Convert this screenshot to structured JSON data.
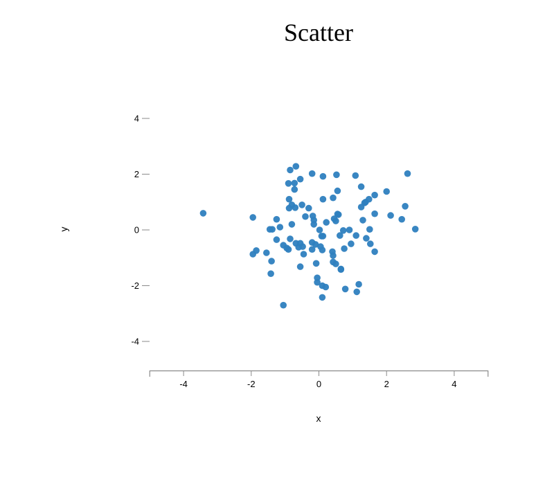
{
  "chart_data": {
    "type": "scatter",
    "title": "Scatter",
    "xlabel": "x",
    "ylabel": "y",
    "xlim": [
      -5,
      5
    ],
    "ylim": [
      -5,
      5
    ],
    "xticks": [
      -4,
      -2,
      0,
      2,
      4
    ],
    "yticks": [
      -4,
      -2,
      0,
      2,
      4
    ],
    "grid": false,
    "marker_color": "#2e7fbf",
    "points": [
      [
        -3.42,
        0.6
      ],
      [
        -1.95,
        0.45
      ],
      [
        -1.95,
        -0.87
      ],
      [
        -1.85,
        -0.74
      ],
      [
        -1.55,
        -0.82
      ],
      [
        -1.45,
        0.02
      ],
      [
        -1.38,
        0.02
      ],
      [
        -1.4,
        -1.12
      ],
      [
        -1.42,
        -1.57
      ],
      [
        -1.25,
        0.38
      ],
      [
        -1.25,
        -0.35
      ],
      [
        -1.15,
        0.1
      ],
      [
        -1.05,
        -0.55
      ],
      [
        -1.05,
        -2.7
      ],
      [
        -0.95,
        -0.65
      ],
      [
        -0.9,
        -0.7
      ],
      [
        -0.9,
        1.67
      ],
      [
        -0.88,
        1.1
      ],
      [
        -0.88,
        0.78
      ],
      [
        -0.85,
        -0.32
      ],
      [
        -0.85,
        2.15
      ],
      [
        -0.8,
        0.2
      ],
      [
        -0.8,
        0.9
      ],
      [
        -0.72,
        1.45
      ],
      [
        -0.72,
        1.68
      ],
      [
        -0.7,
        0.8
      ],
      [
        -0.68,
        2.28
      ],
      [
        -0.68,
        -0.48
      ],
      [
        -0.6,
        -0.62
      ],
      [
        -0.55,
        1.82
      ],
      [
        -0.55,
        -0.48
      ],
      [
        -0.55,
        -1.32
      ],
      [
        -0.5,
        0.9
      ],
      [
        -0.48,
        -0.6
      ],
      [
        -0.45,
        -0.87
      ],
      [
        -0.4,
        0.48
      ],
      [
        -0.3,
        0.78
      ],
      [
        -0.2,
        2.02
      ],
      [
        -0.2,
        -0.45
      ],
      [
        -0.2,
        -0.7
      ],
      [
        -0.18,
        0.5
      ],
      [
        -0.15,
        0.35
      ],
      [
        -0.15,
        0.2
      ],
      [
        -0.1,
        -0.52
      ],
      [
        -0.08,
        -1.2
      ],
      [
        -0.05,
        -1.72
      ],
      [
        -0.05,
        -1.88
      ],
      [
        0.02,
        0.0
      ],
      [
        0.05,
        -0.6
      ],
      [
        0.08,
        -0.22
      ],
      [
        0.1,
        -0.72
      ],
      [
        0.12,
        -0.22
      ],
      [
        0.12,
        1.1
      ],
      [
        0.12,
        1.92
      ],
      [
        0.1,
        -2.42
      ],
      [
        0.1,
        -2.0
      ],
      [
        0.2,
        -2.05
      ],
      [
        0.22,
        0.27
      ],
      [
        0.4,
        -0.78
      ],
      [
        0.42,
        -0.92
      ],
      [
        0.42,
        1.15
      ],
      [
        0.42,
        -1.15
      ],
      [
        0.45,
        0.4
      ],
      [
        0.5,
        0.32
      ],
      [
        0.5,
        -1.22
      ],
      [
        0.52,
        1.98
      ],
      [
        0.55,
        1.4
      ],
      [
        0.55,
        0.57
      ],
      [
        0.58,
        0.55
      ],
      [
        0.62,
        -0.2
      ],
      [
        0.65,
        -1.4
      ],
      [
        0.65,
        -1.42
      ],
      [
        0.72,
        -0.02
      ],
      [
        0.75,
        -0.67
      ],
      [
        0.78,
        -2.12
      ],
      [
        0.9,
        0.0
      ],
      [
        0.95,
        -0.5
      ],
      [
        1.08,
        1.95
      ],
      [
        1.1,
        -0.2
      ],
      [
        1.12,
        -2.22
      ],
      [
        1.18,
        -1.95
      ],
      [
        1.25,
        1.55
      ],
      [
        1.25,
        0.82
      ],
      [
        1.3,
        0.35
      ],
      [
        1.35,
        0.97
      ],
      [
        1.38,
        1.0
      ],
      [
        1.4,
        -0.3
      ],
      [
        1.48,
        1.1
      ],
      [
        1.5,
        0.02
      ],
      [
        1.52,
        -0.5
      ],
      [
        1.65,
        0.58
      ],
      [
        1.65,
        1.25
      ],
      [
        1.65,
        -0.78
      ],
      [
        2.0,
        1.38
      ],
      [
        2.12,
        0.52
      ],
      [
        2.45,
        0.38
      ],
      [
        2.55,
        0.85
      ],
      [
        2.62,
        2.02
      ],
      [
        2.85,
        0.03
      ]
    ]
  }
}
